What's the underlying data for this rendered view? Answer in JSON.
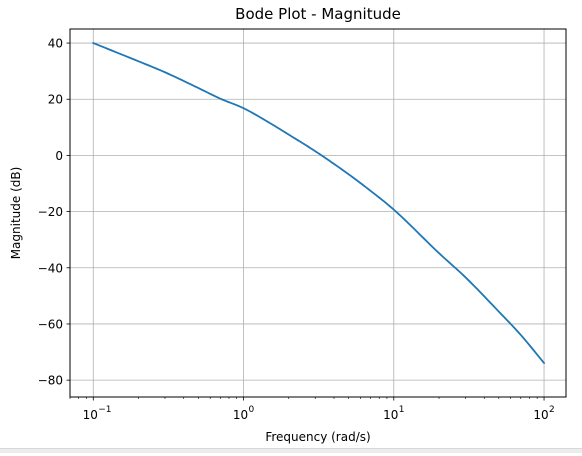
{
  "chart_data": {
    "type": "line",
    "title": "Bode Plot - Magnitude",
    "xlabel": "Frequency (rad/s)",
    "ylabel": "Magnitude (dB)",
    "xscale": "log",
    "xlim": [
      0.07,
      140
    ],
    "ylim": [
      -86,
      45
    ],
    "grid": true,
    "x_ticks": [
      {
        "value": 0.1,
        "base": "10",
        "exp": "−1"
      },
      {
        "value": 1,
        "base": "10",
        "exp": "0"
      },
      {
        "value": 10,
        "base": "10",
        "exp": "1"
      },
      {
        "value": 100,
        "base": "10",
        "exp": "2"
      }
    ],
    "y_ticks": [
      {
        "value": 40,
        "label": "40"
      },
      {
        "value": 20,
        "label": "20"
      },
      {
        "value": 0,
        "label": "0"
      },
      {
        "value": -20,
        "label": "−20"
      },
      {
        "value": -40,
        "label": "−40"
      },
      {
        "value": -60,
        "label": "−60"
      },
      {
        "value": -80,
        "label": "−80"
      }
    ],
    "series": [
      {
        "color": "#1f77b4",
        "x": [
          0.1,
          0.2,
          0.3,
          0.5,
          0.7,
          1,
          1.5,
          2,
          3,
          5,
          7,
          10,
          20,
          30,
          50,
          70,
          100
        ],
        "y": [
          40,
          33.5,
          29.6,
          24,
          20.2,
          16.8,
          11.5,
          7.4,
          1.5,
          -6.7,
          -12.6,
          -19.3,
          -34.8,
          -43.4,
          -55.6,
          -63.9,
          -73.9
        ]
      }
    ]
  }
}
